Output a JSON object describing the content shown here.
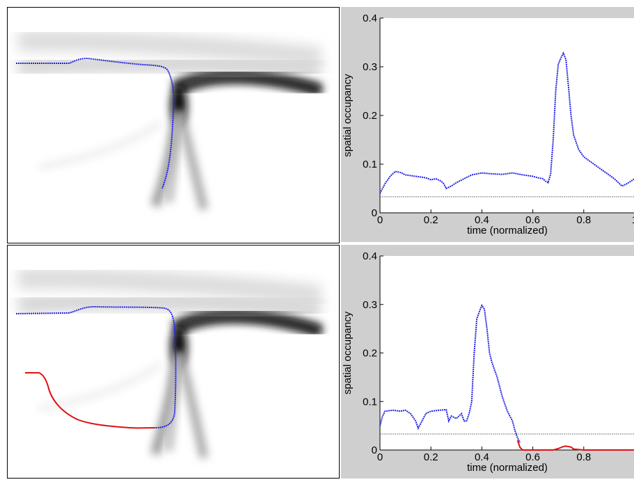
{
  "colors": {
    "occupancy_blue": "#1f1fe6",
    "anomaly_red": "#e01010",
    "threshold_gray": "#7a7a7a",
    "figure_bg": "#cfcfcf",
    "heatmap_dark": "#151515"
  },
  "chart_data": [
    {
      "type": "heatmap",
      "panel": "top-left",
      "description_role": "trajectory overlaid on spatial occupancy map",
      "series": [
        {
          "color": "blue",
          "trajectory": "enters from left, along the upper path, then down the central column"
        }
      ]
    },
    {
      "type": "line",
      "panel": "top-right",
      "xlabel": "time (normalized)",
      "ylabel": "spatial occupancy",
      "xlim": [
        0,
        1
      ],
      "ylim": [
        0,
        0.4
      ],
      "x_ticks": [
        "0",
        "0.2",
        "0.4",
        "0.6",
        "0.8",
        "1"
      ],
      "y_ticks": [
        "0",
        "0.1",
        "0.2",
        "0.3",
        "0.4"
      ],
      "threshold": 0.033,
      "series": [
        {
          "color": "blue",
          "style": "dotted",
          "x": [
            0,
            0.02,
            0.04,
            0.06,
            0.08,
            0.1,
            0.14,
            0.18,
            0.2,
            0.22,
            0.24,
            0.25,
            0.26,
            0.28,
            0.3,
            0.33,
            0.36,
            0.4,
            0.44,
            0.48,
            0.52,
            0.56,
            0.6,
            0.62,
            0.64,
            0.65,
            0.66,
            0.67,
            0.68,
            0.69,
            0.7,
            0.71,
            0.72,
            0.73,
            0.74,
            0.75,
            0.76,
            0.78,
            0.8,
            0.84,
            0.88,
            0.92,
            0.95,
            0.97,
            1.0
          ],
          "y": [
            0.04,
            0.06,
            0.075,
            0.085,
            0.083,
            0.078,
            0.075,
            0.072,
            0.068,
            0.07,
            0.065,
            0.06,
            0.05,
            0.055,
            0.062,
            0.07,
            0.078,
            0.082,
            0.08,
            0.079,
            0.082,
            0.078,
            0.075,
            0.072,
            0.07,
            0.065,
            0.062,
            0.08,
            0.15,
            0.25,
            0.305,
            0.318,
            0.328,
            0.315,
            0.26,
            0.2,
            0.16,
            0.13,
            0.115,
            0.1,
            0.085,
            0.07,
            0.055,
            0.06,
            0.07
          ]
        }
      ]
    },
    {
      "type": "heatmap",
      "panel": "bottom-left",
      "description_role": "trajectory overlaid on spatial occupancy map",
      "series": [
        {
          "color": "blue",
          "trajectory": "upper path then down central column"
        },
        {
          "color": "red",
          "trajectory": "low-occupancy curve to the lower left"
        }
      ]
    },
    {
      "type": "line",
      "panel": "bottom-right",
      "xlabel": "time (normalized)",
      "ylabel": "spatial occupancy",
      "xlim": [
        0,
        1
      ],
      "ylim": [
        0,
        0.4
      ],
      "x_ticks": [
        "0",
        "0.2",
        "0.4",
        "0.6",
        "0.8"
      ],
      "y_ticks": [
        "0",
        "0.1",
        "0.2",
        "0.3",
        "0.4"
      ],
      "threshold": 0.033,
      "series": [
        {
          "color": "blue",
          "style": "dotted",
          "x": [
            0,
            0.01,
            0.02,
            0.05,
            0.08,
            0.1,
            0.12,
            0.14,
            0.15,
            0.16,
            0.18,
            0.2,
            0.23,
            0.26,
            0.27,
            0.28,
            0.3,
            0.31,
            0.32,
            0.33,
            0.34,
            0.35,
            0.36,
            0.37,
            0.38,
            0.39,
            0.4,
            0.41,
            0.42,
            0.43,
            0.44,
            0.46,
            0.48,
            0.5,
            0.52,
            0.53,
            0.54,
            0.55
          ],
          "y": [
            0.05,
            0.07,
            0.08,
            0.082,
            0.08,
            0.082,
            0.075,
            0.06,
            0.045,
            0.055,
            0.075,
            0.08,
            0.082,
            0.083,
            0.06,
            0.07,
            0.065,
            0.07,
            0.075,
            0.06,
            0.06,
            0.075,
            0.1,
            0.2,
            0.27,
            0.285,
            0.298,
            0.29,
            0.25,
            0.2,
            0.18,
            0.15,
            0.11,
            0.08,
            0.06,
            0.04,
            0.025,
            0.015
          ]
        },
        {
          "color": "red",
          "style": "solid",
          "x": [
            0.54,
            0.55,
            0.56,
            0.6,
            0.65,
            0.68,
            0.7,
            0.72,
            0.73,
            0.75,
            0.76,
            0.8,
            0.9,
            1.0
          ],
          "y": [
            0.02,
            0.005,
            0.0,
            0.0,
            0.0,
            0.0,
            0.003,
            0.007,
            0.008,
            0.006,
            0.002,
            0.0,
            0.0,
            0.0
          ]
        }
      ]
    }
  ]
}
